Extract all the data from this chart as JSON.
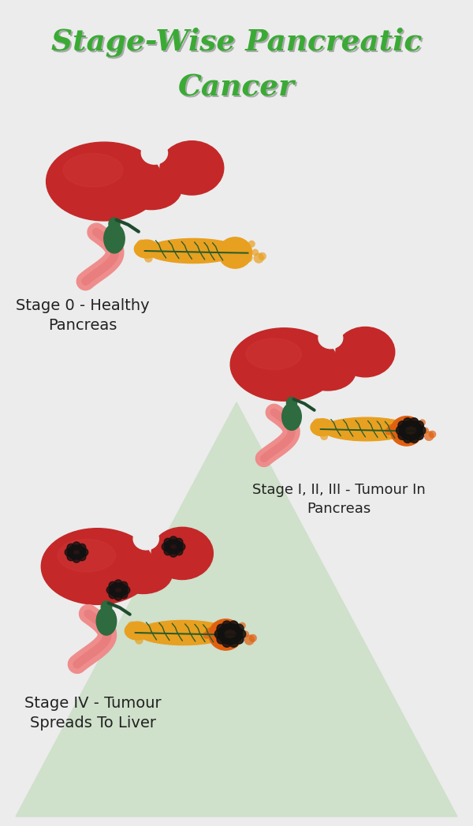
{
  "title_line1": "Stage-Wise Pancreatic",
  "title_line2": "Cancer",
  "title_color": "#3aaa35",
  "background_color": "#ececec",
  "triangle_color": "#cfe0cb",
  "label0": "Stage 0 - Healthy\nPancreas",
  "label1": "Stage I, II, III - Tumour In\nPancreas",
  "label2": "Stage IV - Tumour\nSpreads To Liver",
  "label_color": "#222222",
  "liver_color": "#c42828",
  "liver_dark": "#952020",
  "liver_highlight": "#d84040",
  "gallbladder_color": "#2e6b3e",
  "gallbladder_dark": "#1e4b2e",
  "pancreas_healthy_color": "#e8a020",
  "pancreas_tumor_color": "#e07818",
  "pancreas_inflamed": "#e06010",
  "tumor_color": "#111111",
  "duct_color": "#2a5c2a",
  "stomach_color": "#f08888",
  "stomach_inner": "#e06868",
  "fig_width": 6.0,
  "fig_height": 10.47
}
